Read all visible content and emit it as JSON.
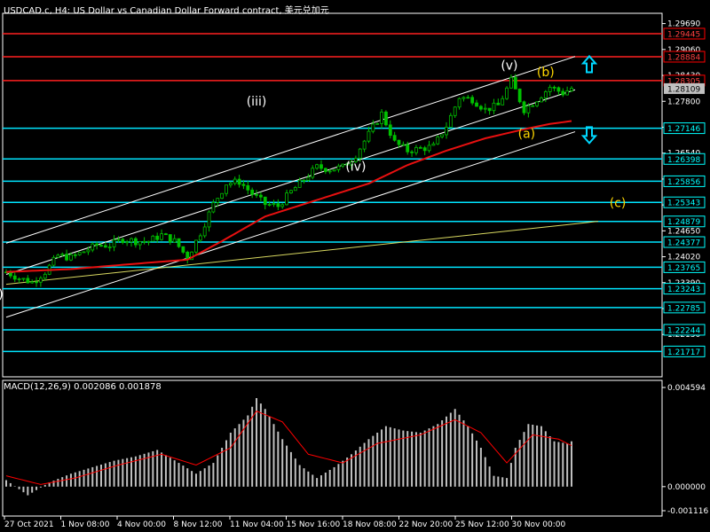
{
  "window_title": "USDCAD.c, H4:  US Dollar vs Canadian Dollar Forward contract, 美元兑加元",
  "colors": {
    "background": "#000000",
    "grid_border": "#ffffff",
    "candle": "#00c000",
    "level_cyan": "#00e5ff",
    "level_red": "#ff2020",
    "ma_red": "#e81010",
    "channel_white": "#ffffff",
    "trend_yellow": "#d8d860",
    "wave_white": "#ffffff",
    "wave_yellow": "#ffd700",
    "arrow_cyan": "#00d8ff",
    "macd_hist": "#c0c0c0",
    "macd_signal": "#ff0000",
    "tag_red_bg": "#ff0000",
    "tag_cyan_bg": "#00ffff",
    "tag_grey_bg": "#c0c0c0"
  },
  "price_axis": {
    "ylim": [
      1.211,
      1.2994
    ],
    "ticks": [
      "1.29690",
      "1.29060",
      "1.28430",
      "1.27800",
      "1.27170",
      "1.26540",
      "1.25910",
      "1.25280",
      "1.24650",
      "1.24020",
      "1.23390",
      "1.22760",
      "1.22130"
    ],
    "tick_values": [
      1.2969,
      1.2906,
      1.2843,
      1.278,
      1.2717,
      1.2654,
      1.2591,
      1.2528,
      1.2465,
      1.2402,
      1.2339,
      1.2276,
      1.2213
    ]
  },
  "levels": [
    {
      "label": "1.29445",
      "value": 1.29445,
      "color": "red"
    },
    {
      "label": "1.28884",
      "value": 1.28884,
      "color": "red"
    },
    {
      "label": "1.28305",
      "value": 1.28305,
      "color": "red"
    },
    {
      "label": "1.27146",
      "value": 1.27146,
      "color": "cyan"
    },
    {
      "label": "1.26398",
      "value": 1.26398,
      "color": "cyan"
    },
    {
      "label": "1.25856",
      "value": 1.25856,
      "color": "cyan"
    },
    {
      "label": "1.25343",
      "value": 1.25343,
      "color": "cyan"
    },
    {
      "label": "1.24879",
      "value": 1.24879,
      "color": "cyan"
    },
    {
      "label": "1.24377",
      "value": 1.24377,
      "color": "cyan"
    },
    {
      "label": "1.23765",
      "value": 1.23765,
      "color": "cyan"
    },
    {
      "label": "1.23243",
      "value": 1.23243,
      "color": "cyan"
    },
    {
      "label": "1.22785",
      "value": 1.22785,
      "color": "cyan"
    },
    {
      "label": "1.22244",
      "value": 1.22244,
      "color": "cyan"
    },
    {
      "label": "1.21717",
      "value": 1.21717,
      "color": "cyan"
    }
  ],
  "current_price": {
    "label": "1.28109",
    "value": 1.28109
  },
  "x_axis_labels": [
    "27 Oct 2021",
    "1 Nov 08:00",
    "4 Nov 00:00",
    "8 Nov 12:00",
    "11 Nov 04:00",
    "15 Nov 16:00",
    "18 Nov 08:00",
    "22 Nov 20:00",
    "25 Nov 12:00",
    "30 Nov 00:00"
  ],
  "chart_data": {
    "type": "candlestick",
    "title": "USDCAD.c, H4:  US Dollar vs Canadian Dollar Forward contract, 美元兑加元",
    "x_labels": [
      "27 Oct 2021",
      "1 Nov 08:00",
      "4 Nov 00:00",
      "8 Nov 12:00",
      "11 Nov 04:00",
      "15 Nov 16:00",
      "18 Nov 08:00",
      "22 Nov 20:00",
      "25 Nov 12:00",
      "30 Nov 00:00"
    ],
    "close_path": [
      [
        0,
        1.2365
      ],
      [
        3,
        1.235
      ],
      [
        6,
        1.234
      ],
      [
        9,
        1.2365
      ],
      [
        12,
        1.2405
      ],
      [
        15,
        1.24
      ],
      [
        18,
        1.2415
      ],
      [
        21,
        1.243
      ],
      [
        24,
        1.243
      ],
      [
        27,
        1.2445
      ],
      [
        30,
        1.244
      ],
      [
        33,
        1.244
      ],
      [
        36,
        1.2455
      ],
      [
        39,
        1.244
      ],
      [
        42,
        1.24
      ],
      [
        45,
        1.246
      ],
      [
        48,
        1.253
      ],
      [
        51,
        1.258
      ],
      [
        54,
        1.2585
      ],
      [
        57,
        1.2555
      ],
      [
        60,
        1.253
      ],
      [
        63,
        1.2525
      ],
      [
        66,
        1.256
      ],
      [
        69,
        1.259
      ],
      [
        72,
        1.262
      ],
      [
        75,
        1.2615
      ],
      [
        78,
        1.262
      ],
      [
        81,
        1.265
      ],
      [
        84,
        1.27
      ],
      [
        87,
        1.275
      ],
      [
        90,
        1.268
      ],
      [
        93,
        1.266
      ],
      [
        96,
        1.2665
      ],
      [
        99,
        1.267
      ],
      [
        102,
        1.272
      ],
      [
        105,
        1.279
      ],
      [
        108,
        1.2785
      ],
      [
        111,
        1.276
      ],
      [
        114,
        1.277
      ],
      [
        117,
        1.283
      ],
      [
        120,
        1.276
      ],
      [
        123,
        1.2785
      ],
      [
        126,
        1.2815
      ],
      [
        129,
        1.28
      ],
      [
        131,
        1.2812
      ]
    ],
    "moving_average": [
      [
        0,
        1.2365
      ],
      [
        15,
        1.2372
      ],
      [
        30,
        1.2385
      ],
      [
        42,
        1.2395
      ],
      [
        50,
        1.244
      ],
      [
        60,
        1.25
      ],
      [
        72,
        1.254
      ],
      [
        84,
        1.258
      ],
      [
        93,
        1.2625
      ],
      [
        102,
        1.266
      ],
      [
        111,
        1.269
      ],
      [
        120,
        1.2712
      ],
      [
        126,
        1.2725
      ],
      [
        131,
        1.2732
      ]
    ],
    "macd": {
      "label": "MACD(12,26,9) 0.002086 0.001878",
      "ylim": [
        -0.001116,
        0.004594
      ],
      "tick_labels": [
        "0.004594",
        "0.000000",
        "-0.001116"
      ],
      "histogram": [
        [
          0,
          0.0003
        ],
        [
          5,
          -0.0004
        ],
        [
          10,
          0.0002
        ],
        [
          15,
          0.0006
        ],
        [
          20,
          0.0009
        ],
        [
          25,
          0.0012
        ],
        [
          30,
          0.0014
        ],
        [
          35,
          0.0017
        ],
        [
          40,
          0.0011
        ],
        [
          44,
          0.0006
        ],
        [
          48,
          0.0011
        ],
        [
          52,
          0.0025
        ],
        [
          56,
          0.0033
        ],
        [
          58,
          0.0041
        ],
        [
          60,
          0.0036
        ],
        [
          64,
          0.0022
        ],
        [
          68,
          0.001
        ],
        [
          72,
          0.0004
        ],
        [
          76,
          0.0009
        ],
        [
          80,
          0.0015
        ],
        [
          84,
          0.0022
        ],
        [
          88,
          0.0028
        ],
        [
          92,
          0.0026
        ],
        [
          96,
          0.0025
        ],
        [
          100,
          0.0029
        ],
        [
          104,
          0.0036
        ],
        [
          107,
          0.0028
        ],
        [
          110,
          0.0018
        ],
        [
          113,
          0.0005
        ],
        [
          116,
          0.0004
        ],
        [
          118,
          0.0018
        ],
        [
          121,
          0.0029
        ],
        [
          124,
          0.0028
        ],
        [
          127,
          0.0021
        ],
        [
          130,
          0.002
        ],
        [
          131,
          0.0021
        ]
      ],
      "signal": [
        [
          0,
          0.0005
        ],
        [
          8,
          0.0001
        ],
        [
          16,
          0.0004
        ],
        [
          26,
          0.001
        ],
        [
          36,
          0.0015
        ],
        [
          44,
          0.001
        ],
        [
          52,
          0.0018
        ],
        [
          58,
          0.0035
        ],
        [
          64,
          0.003
        ],
        [
          70,
          0.0015
        ],
        [
          78,
          0.0011
        ],
        [
          86,
          0.002
        ],
        [
          96,
          0.0024
        ],
        [
          104,
          0.0031
        ],
        [
          110,
          0.0025
        ],
        [
          116,
          0.0011
        ],
        [
          122,
          0.0024
        ],
        [
          128,
          0.0022
        ],
        [
          131,
          0.0019
        ]
      ]
    }
  },
  "wave_labels": [
    {
      "text": "(iii)",
      "color": "white"
    },
    {
      "text": "(iv)",
      "color": "white"
    },
    {
      "text": "(v)",
      "color": "white"
    },
    {
      "text": "(a)",
      "color": "yellow"
    },
    {
      "text": "(b)",
      "color": "yellow"
    },
    {
      "text": "(c)",
      "color": "yellow"
    },
    {
      "text": ")",
      "color": "white"
    }
  ],
  "arrows": {
    "up": "up-arrow-icon",
    "down": "down-arrow-icon"
  }
}
